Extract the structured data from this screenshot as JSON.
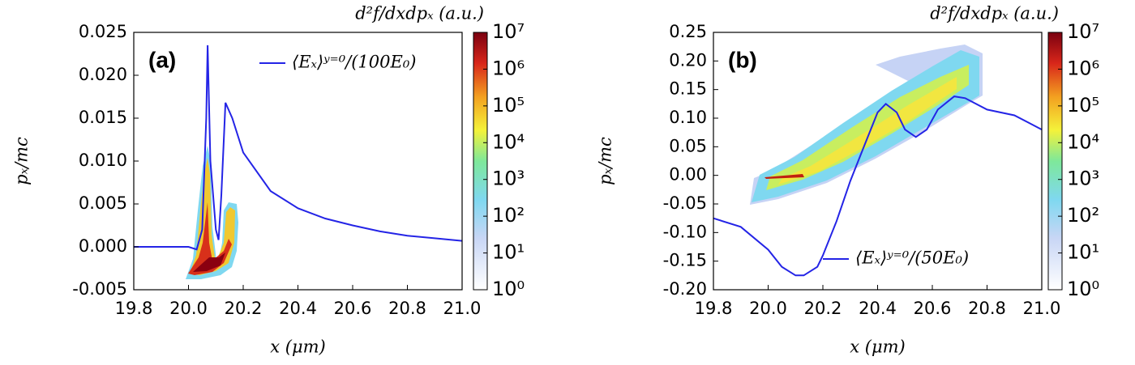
{
  "chart_data": [
    {
      "type": "line",
      "annotation": "(a)",
      "xlabel": "x (μm)",
      "ylabel": "pₓ/mc",
      "legend": "upper right",
      "x": [
        19.8,
        20.0,
        20.03,
        20.05,
        20.065,
        20.07,
        20.08,
        20.1,
        20.11,
        20.12,
        20.135,
        20.16,
        20.2,
        20.3,
        20.4,
        20.5,
        20.6,
        20.7,
        20.8,
        20.9,
        21.0
      ],
      "series": [
        {
          "name": "⟨Eₓ⟩ʸ⁼⁰/(100E₀)",
          "color": "#2424e6",
          "values": [
            0,
            0,
            -0.0003,
            0.002,
            0.015,
            0.0235,
            0.01,
            0.002,
            0.0008,
            0.006,
            0.0168,
            0.015,
            0.011,
            0.0065,
            0.0045,
            0.0033,
            0.0025,
            0.0018,
            0.0013,
            0.001,
            0.0007
          ]
        }
      ],
      "xlim": [
        19.8,
        21.0
      ],
      "xticks": [
        19.8,
        {
          "value": 20.0,
          "label": "20.0"
        },
        20.2,
        20.4,
        20.6,
        20.8,
        {
          "value": 21.0,
          "label": "21.0"
        }
      ],
      "ylim": [
        -0.005,
        0.025
      ],
      "yticks": [
        -0.005,
        {
          "value": 0,
          "label": "0.000"
        },
        0.005,
        {
          "value": 0.01,
          "label": "0.010"
        },
        0.015,
        {
          "value": 0.02,
          "label": "0.020"
        },
        0.025
      ],
      "colorbar": {
        "label": "d²f/dxdpₓ (a.u.)",
        "scale": "log",
        "lim": [
          1,
          10000000
        ],
        "ticks": [
          {
            "value": 1,
            "label": "10⁰"
          },
          {
            "value": 10,
            "label": "10¹"
          },
          {
            "value": 100,
            "label": "10²"
          },
          {
            "value": 1000,
            "label": "10³"
          },
          {
            "value": 10000,
            "label": "10⁴"
          },
          {
            "value": 100000,
            "label": "10⁵"
          },
          {
            "value": 1000000,
            "label": "10⁶"
          },
          {
            "value": 10000000,
            "label": "10⁷"
          }
        ]
      }
    },
    {
      "type": "line",
      "annotation": "(b)",
      "xlabel": "x (μm)",
      "ylabel": "pₓ/mc",
      "legend": "lower right",
      "x": [
        19.8,
        19.9,
        20.0,
        20.05,
        20.1,
        20.13,
        20.18,
        20.2,
        20.25,
        20.3,
        20.35,
        20.4,
        20.43,
        20.47,
        20.5,
        20.54,
        20.58,
        20.62,
        20.68,
        20.72,
        20.8,
        20.9,
        21.0
      ],
      "series": [
        {
          "name": "⟨Eₓ⟩ʸ⁼⁰/(50E₀)",
          "color": "#2424e6",
          "values": [
            -0.075,
            -0.09,
            -0.13,
            -0.16,
            -0.175,
            -0.175,
            -0.16,
            -0.14,
            -0.08,
            -0.01,
            0.05,
            0.11,
            0.125,
            0.11,
            0.08,
            0.067,
            0.08,
            0.115,
            0.138,
            0.135,
            0.115,
            0.105,
            0.08
          ]
        }
      ],
      "xlim": [
        19.8,
        21.0
      ],
      "xticks": [
        19.8,
        {
          "value": 20.0,
          "label": "20.0"
        },
        20.2,
        20.4,
        20.6,
        20.8,
        {
          "value": 21.0,
          "label": "21.0"
        }
      ],
      "ylim": [
        -0.2,
        0.25
      ],
      "yticks": [
        {
          "value": -0.2,
          "label": "-0.20"
        },
        -0.15,
        {
          "value": -0.1,
          "label": "-0.10"
        },
        -0.05,
        {
          "value": 0,
          "label": "0.00"
        },
        0.05,
        {
          "value": 0.1,
          "label": "0.10"
        },
        0.15,
        {
          "value": 0.2,
          "label": "0.20"
        },
        0.25
      ],
      "colorbar": {
        "label": "d²f/dxdpₓ (a.u.)",
        "scale": "log",
        "lim": [
          1,
          10000000
        ],
        "ticks": [
          {
            "value": 1,
            "label": "10⁰"
          },
          {
            "value": 10,
            "label": "10¹"
          },
          {
            "value": 100,
            "label": "10²"
          },
          {
            "value": 1000,
            "label": "10³"
          },
          {
            "value": 10000,
            "label": "10⁴"
          },
          {
            "value": 100000,
            "label": "10⁵"
          },
          {
            "value": 1000000,
            "label": "10⁶"
          },
          {
            "value": 10000000,
            "label": "10⁷"
          }
        ]
      }
    }
  ]
}
